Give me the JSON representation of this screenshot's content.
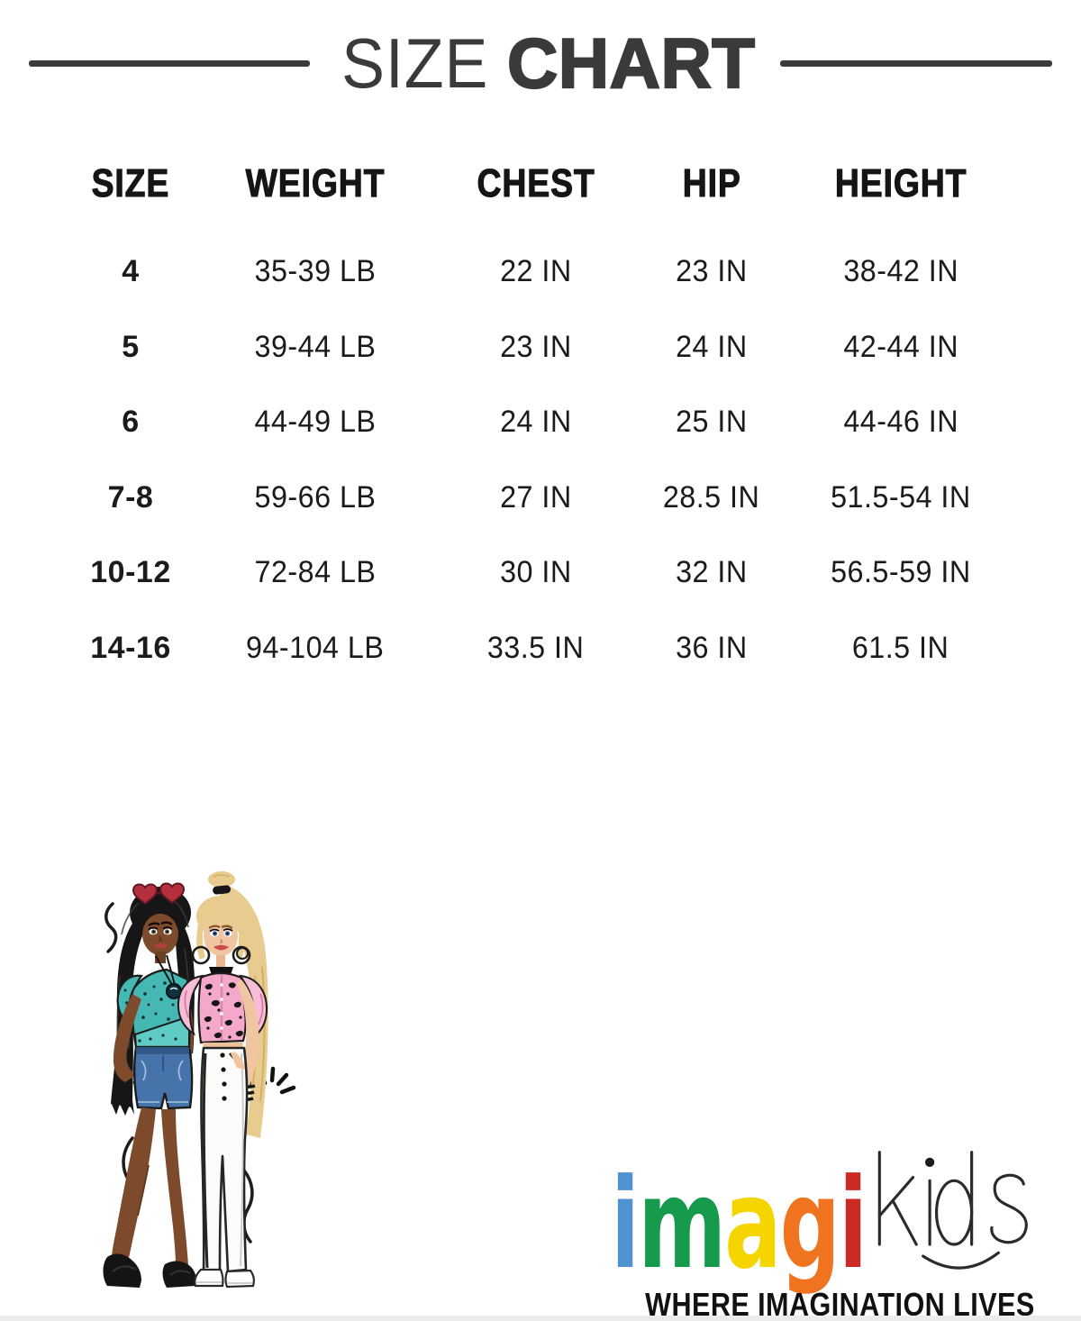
{
  "header": {
    "title_light": "SIZE",
    "title_bold": "CHART"
  },
  "table": {
    "headers": [
      "SIZE",
      "WEIGHT",
      "CHEST",
      "HIP",
      "HEIGHT"
    ],
    "rows": [
      [
        "4",
        "35-39 LB",
        "22 IN",
        "23 IN",
        "38-42 IN"
      ],
      [
        "5",
        "39-44 LB",
        "23 IN",
        "24 IN",
        "42-44 IN"
      ],
      [
        "6",
        "44-49 LB",
        "24 IN",
        "25 IN",
        "44-46 IN"
      ],
      [
        "7-8",
        "59-66 LB",
        "27 IN",
        "28.5 IN",
        "51.5-54 IN"
      ],
      [
        "10-12",
        "72-84 LB",
        "30 IN",
        "32 IN",
        "56.5-59 IN"
      ],
      [
        "14-16",
        "94-104 LB",
        "33.5 IN",
        "36 IN",
        "61.5 IN"
      ]
    ]
  },
  "chart_data": {
    "type": "table",
    "title": "SIZE CHART",
    "columns": [
      "SIZE",
      "WEIGHT",
      "CHEST",
      "HIP",
      "HEIGHT"
    ],
    "rows": [
      [
        "4",
        "35-39 LB",
        "22 IN",
        "23 IN",
        "38-42 IN"
      ],
      [
        "5",
        "39-44 LB",
        "23 IN",
        "24 IN",
        "42-44 IN"
      ],
      [
        "6",
        "44-49 LB",
        "24 IN",
        "25 IN",
        "44-46 IN"
      ],
      [
        "7-8",
        "59-66 LB",
        "27 IN",
        "28.5 IN",
        "51.5-54 IN"
      ],
      [
        "10-12",
        "72-84 LB",
        "30 IN",
        "32 IN",
        "56.5-59 IN"
      ],
      [
        "14-16",
        "94-104 LB",
        "33.5 IN",
        "36 IN",
        "61.5 IN"
      ]
    ]
  },
  "logo": {
    "letters": [
      {
        "char": "i",
        "color": "#4f92d1"
      },
      {
        "char": "m",
        "color": "#169a4b"
      },
      {
        "char": "a",
        "color": "#f5d500"
      },
      {
        "char": "g",
        "color": "#f0731f"
      },
      {
        "char": "i",
        "color": "#cc2a24"
      }
    ],
    "suffix": "kids",
    "tagline": "WHERE IMAGINATION LIVES"
  },
  "illustration": {
    "alt": "Two fashion dolls standing together"
  },
  "colors": {
    "title": "#3a3a3a",
    "rule": "#3a3a3a",
    "table_text": "#1b1b1b"
  }
}
